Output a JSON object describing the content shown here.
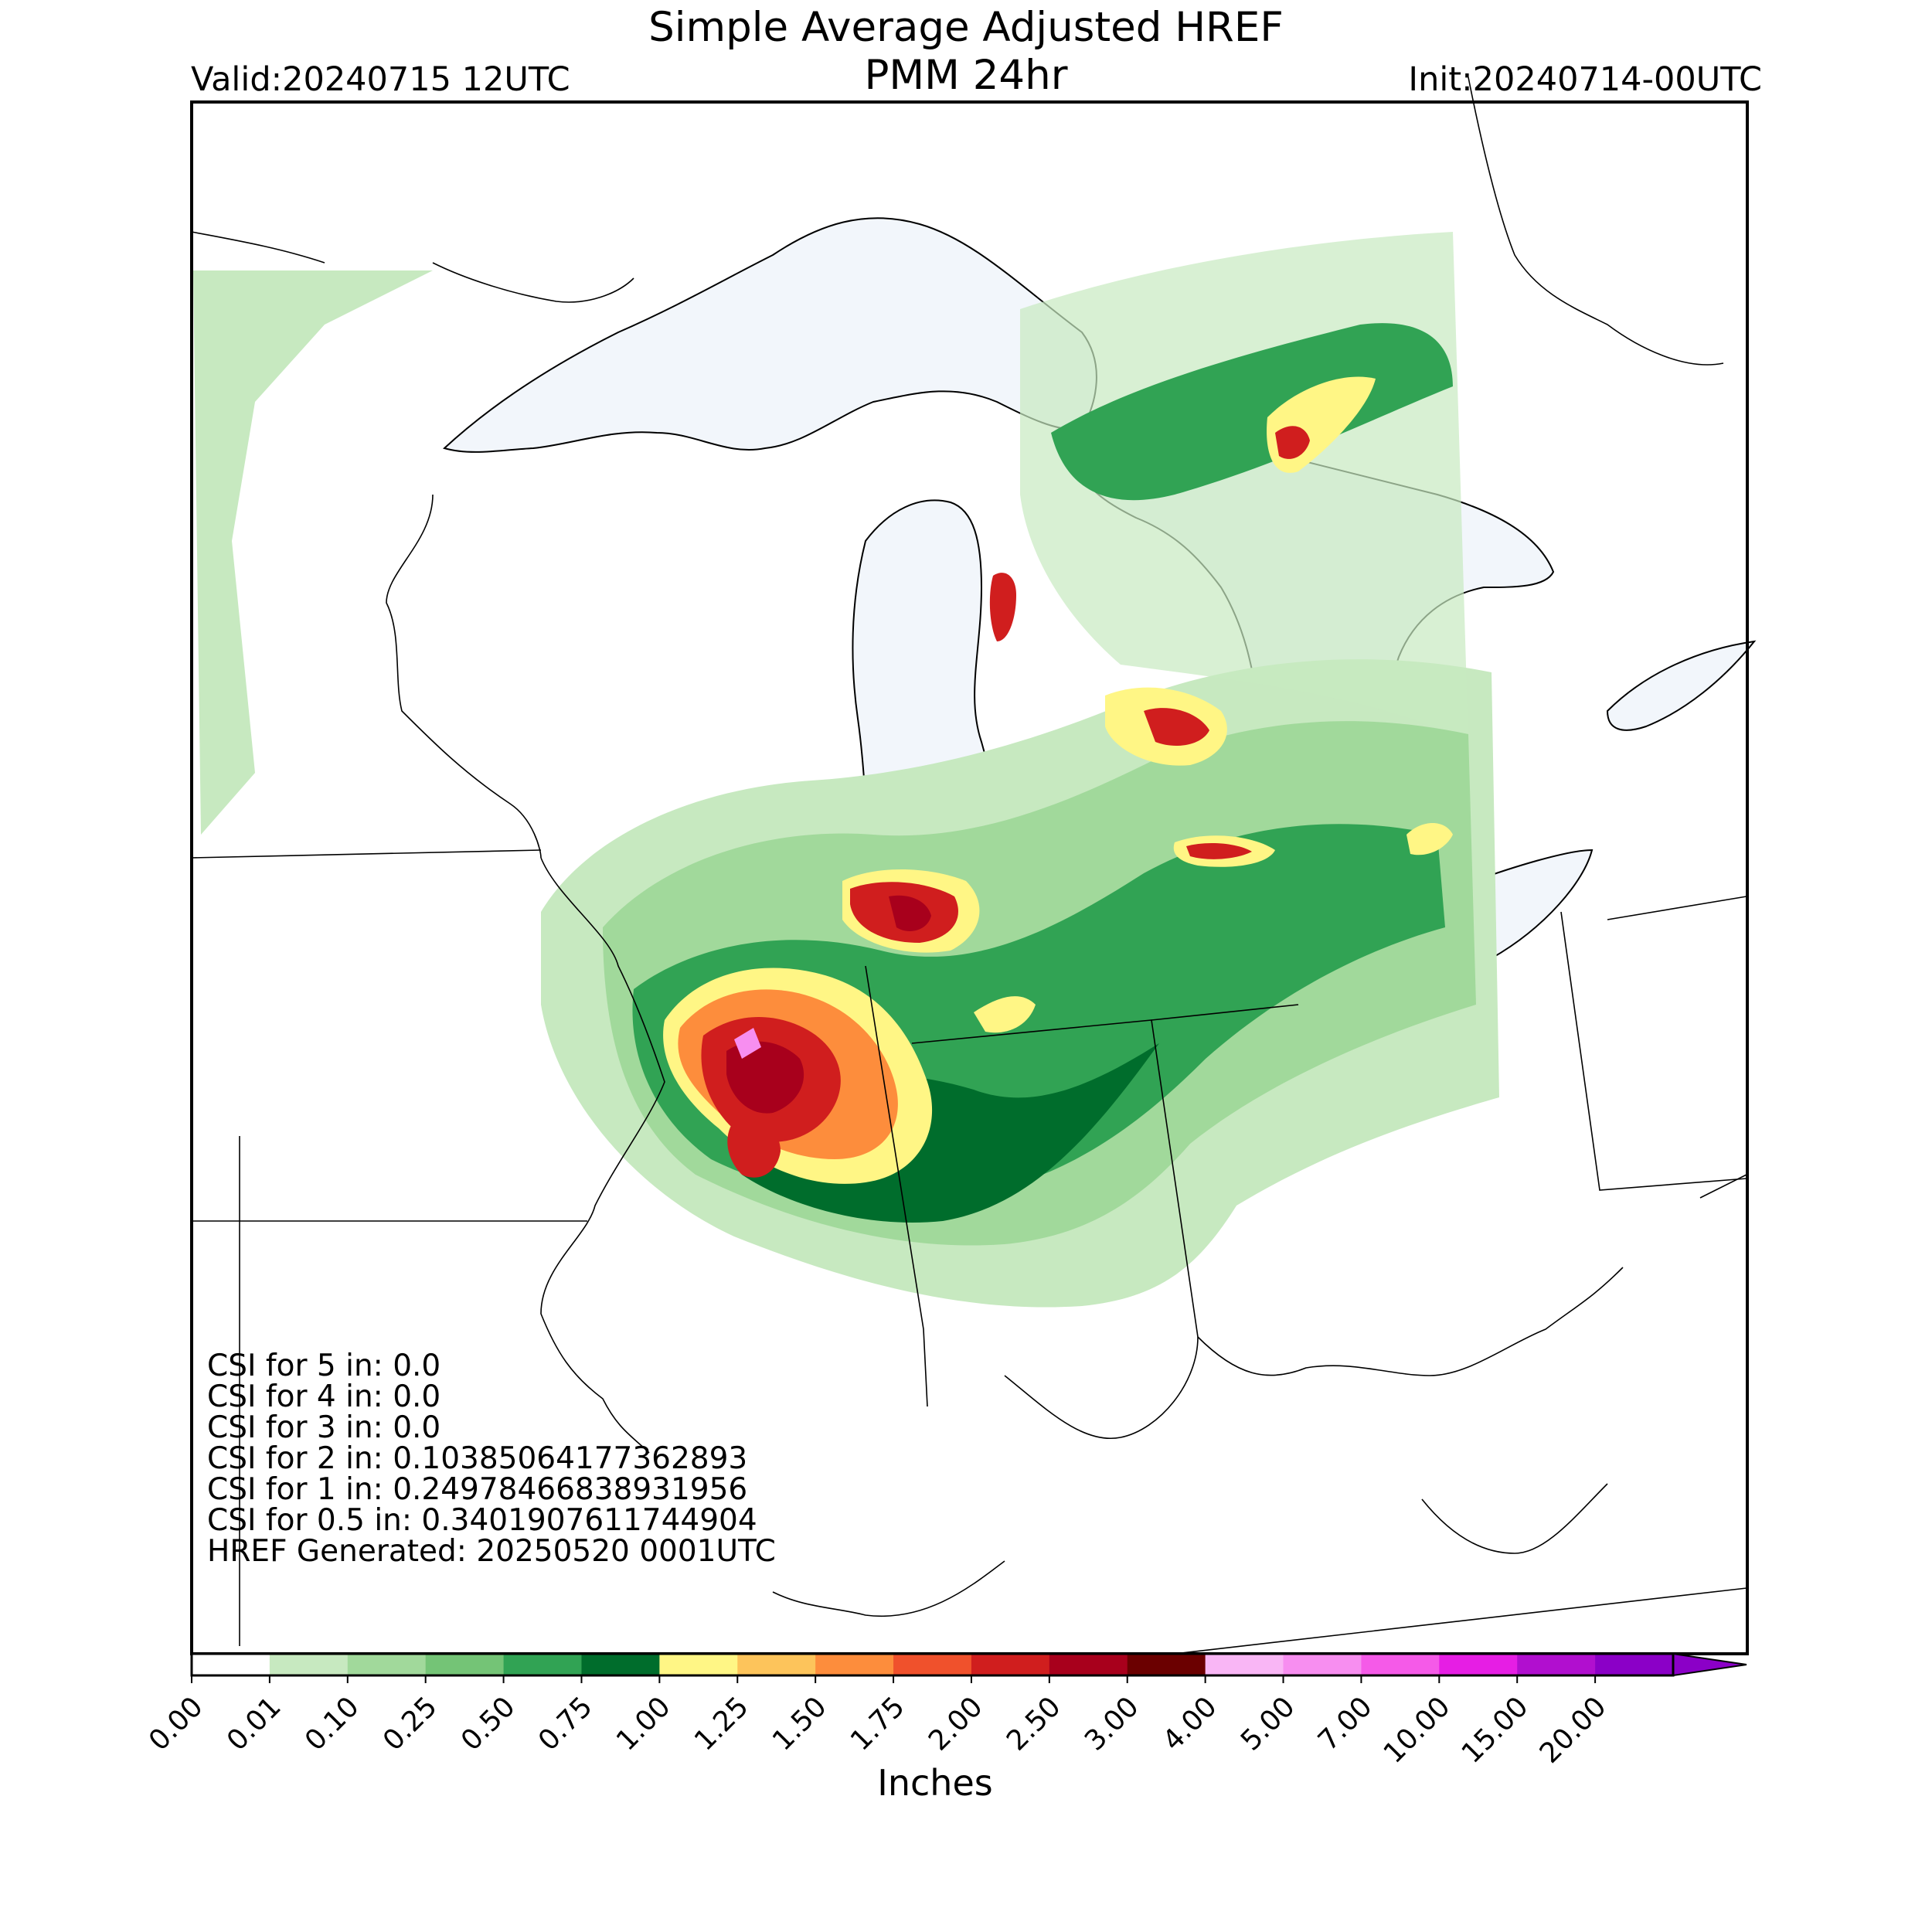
{
  "header": {
    "title": "Simple Average Adjusted HREF",
    "subtitle": "PMM 24hr",
    "valid": "Valid:20240715 12UTC",
    "init": "Init:20240714-00UTC"
  },
  "stats": [
    "CSI for 5 in: 0.0",
    "CSI for 4 in: 0.0",
    "CSI for 3 in: 0.0",
    "CSI for 2 in: 0.10385064177362893",
    "CSI for 1 in: 0.24978466838931956",
    "CSI for 0.5 in: 0.3401907611744904",
    "HREF Generated: 20250520 0001UTC"
  ],
  "colorbar": {
    "label": "Inches",
    "ticks": [
      "0.00",
      "0.01",
      "0.10",
      "0.25",
      "0.50",
      "0.75",
      "1.00",
      "1.25",
      "1.50",
      "1.75",
      "2.00",
      "2.50",
      "3.00",
      "4.00",
      "5.00",
      "7.00",
      "10.00",
      "15.00",
      "20.00"
    ],
    "colors": [
      "#ffffff",
      "#c7e9c0",
      "#a1d99b",
      "#74c476",
      "#31a354",
      "#006d2c",
      "#fff685",
      "#fdc45b",
      "#fd8d3c",
      "#f0512c",
      "#d01e1e",
      "#a8001c",
      "#6b0000",
      "#f9b6f5",
      "#f78ef0",
      "#f55ae8",
      "#e61ee4",
      "#b10fcf",
      "#8b00c7"
    ]
  }
}
